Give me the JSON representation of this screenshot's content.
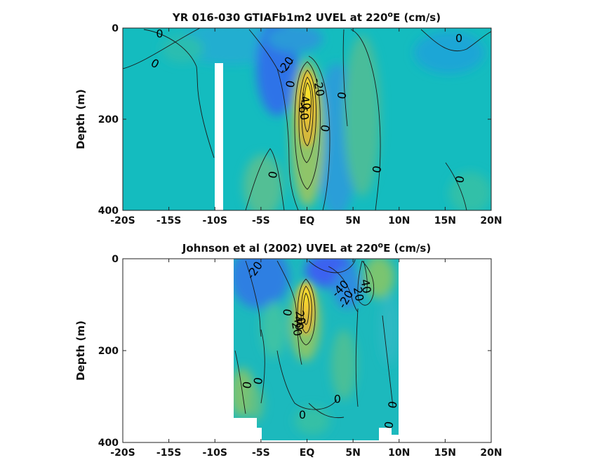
{
  "chart_data": [
    {
      "type": "heatmap",
      "title_main": "YR 016-030 GTIAFb1m2 UVEL at 220",
      "title_sup": "o",
      "title_end": "E (cm/s)",
      "ylabel": "Depth (m)",
      "xlim": [
        -20,
        20
      ],
      "ylim": [
        400,
        0
      ],
      "xticks": [
        -20,
        -15,
        -10,
        -5,
        0,
        5,
        10,
        15,
        20
      ],
      "xtick_labels": [
        "-20S",
        "-15S",
        "-10S",
        "-5S",
        "EQ",
        "5N",
        "10N",
        "15N",
        "20N"
      ],
      "yticks": [
        0,
        200,
        400
      ],
      "ytick_labels": [
        "0",
        "200",
        "400"
      ],
      "contour_labels": [
        {
          "text": "0",
          "lat": -16,
          "depth": 12,
          "rot": 0
        },
        {
          "text": "0",
          "lat": -16.5,
          "depth": 78,
          "rot": 30
        },
        {
          "text": "-20",
          "lat": -2.3,
          "depth": 82,
          "rot": -55
        },
        {
          "text": "0",
          "lat": -1.8,
          "depth": 123,
          "rot": -80
        },
        {
          "text": "-20",
          "lat": 1.3,
          "depth": 130,
          "rot": 80
        },
        {
          "text": "-40",
          "lat": -0.2,
          "depth": 160,
          "rot": 80
        },
        {
          "text": "-60",
          "lat": -0.4,
          "depth": 182,
          "rot": 80
        },
        {
          "text": "0",
          "lat": 2.0,
          "depth": 220,
          "rot": -80
        },
        {
          "text": "0",
          "lat": 3.8,
          "depth": 148,
          "rot": -80
        },
        {
          "text": "0",
          "lat": 16.5,
          "depth": 22,
          "rot": 0
        },
        {
          "text": "0",
          "lat": -3.7,
          "depth": 322,
          "rot": -80
        },
        {
          "text": "0",
          "lat": 7.6,
          "depth": 310,
          "rot": -80
        },
        {
          "text": "0",
          "lat": 16.6,
          "depth": 332,
          "rot": -80
        }
      ]
    },
    {
      "type": "heatmap",
      "title_main": "Johnson et al (2002) UVEL at 220",
      "title_sup": "o",
      "title_end": "E (cm/s)",
      "ylabel": "Depth (m)",
      "xlim": [
        -20,
        20
      ],
      "ylim": [
        400,
        0
      ],
      "xticks": [
        -20,
        -15,
        -10,
        -5,
        0,
        5,
        10,
        15,
        20
      ],
      "xtick_labels": [
        "-20S",
        "-15S",
        "-10S",
        "-5S",
        "EQ",
        "5N",
        "10N",
        "15N",
        "20N"
      ],
      "yticks": [
        0,
        200,
        400
      ],
      "ytick_labels": [
        "0",
        "200",
        "400"
      ],
      "contour_labels": [
        {
          "text": "-20",
          "lat": -5.7,
          "depth": 25,
          "rot": -55
        },
        {
          "text": "-40",
          "lat": 3.6,
          "depth": 65,
          "rot": -45
        },
        {
          "text": "-20",
          "lat": 4.2,
          "depth": 88,
          "rot": -60
        },
        {
          "text": "40",
          "lat": 6.4,
          "depth": 60,
          "rot": 80
        },
        {
          "text": "20",
          "lat": 5.6,
          "depth": 77,
          "rot": 80
        },
        {
          "text": "0",
          "lat": -2.1,
          "depth": 117,
          "rot": -80
        },
        {
          "text": "20",
          "lat": -0.7,
          "depth": 128,
          "rot": 80
        },
        {
          "text": "40",
          "lat": -0.9,
          "depth": 140,
          "rot": 80
        },
        {
          "text": "20",
          "lat": -1.1,
          "depth": 153,
          "rot": 80
        },
        {
          "text": "0",
          "lat": -6.5,
          "depth": 275,
          "rot": -80
        },
        {
          "text": "0",
          "lat": -5.3,
          "depth": 266,
          "rot": -80
        },
        {
          "text": "0",
          "lat": 3.3,
          "depth": 305,
          "rot": 0
        },
        {
          "text": "0",
          "lat": 9.3,
          "depth": 318,
          "rot": -80
        },
        {
          "text": "0",
          "lat": -0.5,
          "depth": 340,
          "rot": 0
        },
        {
          "text": "0",
          "lat": 8.9,
          "depth": 362,
          "rot": -80
        }
      ]
    }
  ]
}
